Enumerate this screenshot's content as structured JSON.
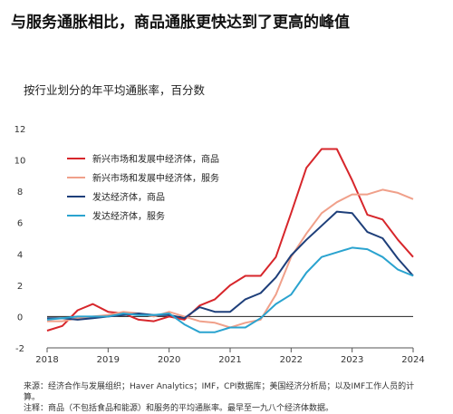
{
  "title": "与服务通胀相比，商品通胀更快达到了更高的峰值",
  "subtitle": "按行业划分的年平均通胀率，百分数",
  "source": "来源：经济合作与发展组织；Haver Analytics；IMF，CPI数据库；美国经济分析局；以及IMF工作人员的计算。",
  "source_cut": "注释：商品（不包括食品和能源）和服务的平均通胀率。最早至一九八个经济体数据。",
  "chart_data": {
    "type": "line",
    "title": "",
    "xlabel": "",
    "ylabel": "",
    "ylim": [
      -2,
      12
    ],
    "xlim": [
      2018,
      2024
    ],
    "yticks": [
      -2,
      0,
      2,
      4,
      6,
      8,
      10,
      12
    ],
    "xticks": [
      2018,
      2019,
      2020,
      2021,
      2022,
      2023,
      2024
    ],
    "grid": false,
    "legend_position": "top-left",
    "series": [
      {
        "name": "新兴市场和发展中经济体，商品",
        "color": "#d7262b",
        "x": [
          2018.0,
          2018.25,
          2018.5,
          2018.75,
          2019.0,
          2019.25,
          2019.5,
          2019.75,
          2020.0,
          2020.25,
          2020.5,
          2020.75,
          2021.0,
          2021.25,
          2021.5,
          2021.75,
          2022.0,
          2022.25,
          2022.5,
          2022.75,
          2023.0,
          2023.25,
          2023.5,
          2023.75,
          2024.0
        ],
        "values": [
          -0.9,
          -0.6,
          0.4,
          0.8,
          0.3,
          0.2,
          -0.2,
          -0.3,
          0.0,
          -0.2,
          0.7,
          1.1,
          2.0,
          2.6,
          2.6,
          3.8,
          6.6,
          9.5,
          10.7,
          10.7,
          8.7,
          6.5,
          6.2,
          4.9,
          3.8
        ]
      },
      {
        "name": "新兴市场和发展中经济体，服务",
        "color": "#f0a08a",
        "x": [
          2018.0,
          2018.25,
          2018.5,
          2018.75,
          2019.0,
          2019.25,
          2019.5,
          2019.75,
          2020.0,
          2020.25,
          2020.5,
          2020.75,
          2021.0,
          2021.25,
          2021.5,
          2021.75,
          2022.0,
          2022.25,
          2022.5,
          2022.75,
          2023.0,
          2023.25,
          2023.5,
          2023.75,
          2024.0
        ],
        "values": [
          -0.3,
          -0.3,
          -0.1,
          0.0,
          0.1,
          0.3,
          0.2,
          0.0,
          0.3,
          0.0,
          -0.3,
          -0.4,
          -0.7,
          -0.4,
          -0.2,
          1.4,
          3.8,
          5.3,
          6.6,
          7.3,
          7.8,
          7.8,
          8.1,
          7.9,
          7.5
        ]
      },
      {
        "name": "发达经济体，商品",
        "color": "#1e3f7a",
        "x": [
          2018.0,
          2018.25,
          2018.5,
          2018.75,
          2019.0,
          2019.25,
          2019.5,
          2019.75,
          2020.0,
          2020.25,
          2020.5,
          2020.75,
          2021.0,
          2021.25,
          2021.5,
          2021.75,
          2022.0,
          2022.25,
          2022.5,
          2022.75,
          2023.0,
          2023.25,
          2023.5,
          2023.75,
          2024.0
        ],
        "values": [
          -0.1,
          -0.1,
          -0.2,
          -0.1,
          0.0,
          0.1,
          0.2,
          0.1,
          0.1,
          -0.1,
          0.6,
          0.3,
          0.3,
          1.1,
          1.5,
          2.5,
          3.9,
          4.9,
          5.8,
          6.7,
          6.6,
          5.4,
          5.0,
          3.7,
          2.6
        ]
      },
      {
        "name": "发达经济体，服务",
        "color": "#2aa3cf",
        "x": [
          2018.0,
          2018.25,
          2018.5,
          2018.75,
          2019.0,
          2019.25,
          2019.5,
          2019.75,
          2020.0,
          2020.25,
          2020.5,
          2020.75,
          2021.0,
          2021.25,
          2021.5,
          2021.75,
          2022.0,
          2022.25,
          2022.5,
          2022.75,
          2023.0,
          2023.25,
          2023.5,
          2023.75,
          2024.0
        ],
        "values": [
          -0.2,
          -0.1,
          0.0,
          0.0,
          0.0,
          0.2,
          0.1,
          0.1,
          0.2,
          -0.5,
          -1.0,
          -1.0,
          -0.7,
          -0.7,
          -0.1,
          0.8,
          1.4,
          2.8,
          3.8,
          4.1,
          4.4,
          4.3,
          3.8,
          3.0,
          2.6
        ]
      }
    ]
  }
}
